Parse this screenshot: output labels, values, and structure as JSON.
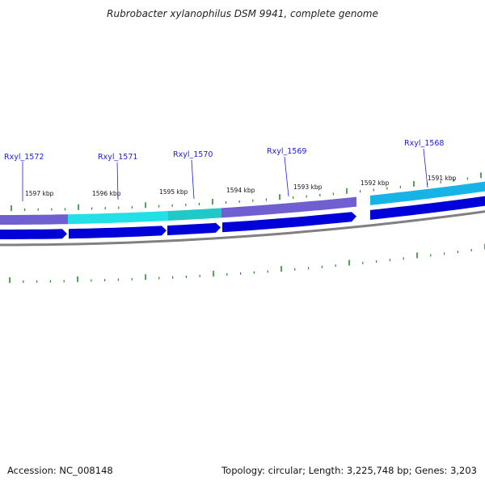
{
  "title": "Rubrobacter xylanophilus DSM 9941, complete genome",
  "colors": {
    "gene_label": "#1a1ae6",
    "tick": "#2e8b2e",
    "cds_arrow": "#0000d8",
    "backbone": "#808080",
    "feature_purple": "#6f5fd0",
    "feature_cyan": "#22e0e6",
    "feature_teal": "#20c8c8",
    "feature_sky": "#17b3e6"
  },
  "gene_labels": [
    "Rxyl_1572",
    "Rxyl_1571",
    "Rxyl_1570",
    "Rxyl_1569",
    "Rxyl_1568"
  ],
  "kbp_labels": [
    "1597 kbp",
    "1596 kbp",
    "1595 kbp",
    "1594 kbp",
    "1593 kbp",
    "1592 kbp",
    "1591 kbp"
  ],
  "footer": {
    "accession": "Accession: NC_008148",
    "info": "Topology: circular; Length: 3,225,748 bp; Genes: 3,203"
  }
}
